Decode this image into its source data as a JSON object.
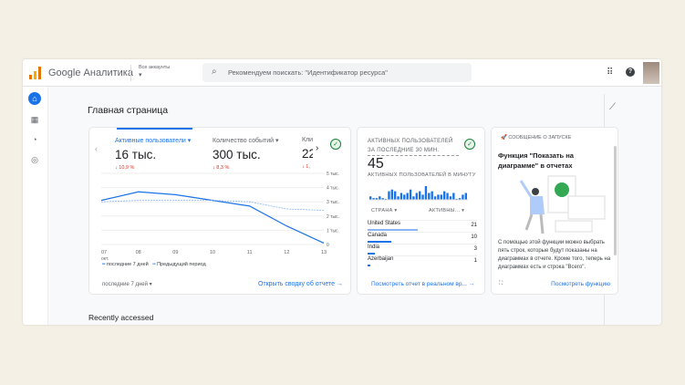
{
  "header": {
    "brand": "Google Аналитика",
    "account_label": "Все аккаунты",
    "search_placeholder": "Рекомендуем поискать: \"Идентификатор ресурса\""
  },
  "page": {
    "title": "Главная страница",
    "recent": "Recently accessed"
  },
  "sidebar": {
    "items": [
      {
        "icon": "home-icon"
      },
      {
        "icon": "reports-icon"
      },
      {
        "icon": "explore-icon"
      },
      {
        "icon": "advertising-icon"
      }
    ]
  },
  "overview": {
    "metrics": [
      {
        "label": "Активные пользователи",
        "value": "16 тыс.",
        "delta": "10,9 %"
      },
      {
        "label": "Количество событий",
        "value": "300 тыс.",
        "delta": "8,3 %"
      },
      {
        "label": "Кли",
        "value": "22",
        "delta": "1,"
      }
    ],
    "legend_current": "последние 7 дней",
    "legend_previous": "Предыдущий период",
    "range": "последние 7 дней",
    "link": "Открыть сводку об отчете"
  },
  "chart_data": {
    "type": "line",
    "x": [
      "07",
      "08",
      "09",
      "10",
      "11",
      "12",
      "13"
    ],
    "x_sublabel": "окт.",
    "ytick_labels": [
      "0",
      "1 тыс.",
      "2 тыс.",
      "3 тыс.",
      "4 тыс.",
      "5 тыс."
    ],
    "ylim": [
      0,
      5000
    ],
    "series": [
      {
        "name": "последние 7 дней",
        "values": [
          3100,
          3700,
          3500,
          3100,
          2700,
          1300,
          100
        ]
      },
      {
        "name": "Предыдущий период",
        "values": [
          3000,
          3100,
          3100,
          3100,
          3000,
          2500,
          2400
        ]
      }
    ],
    "colors": [
      "#1a73e8",
      "#8ab4f8"
    ]
  },
  "realtime": {
    "title": "АКТИВНЫХ ПОЛЬЗОВАТЕЛЕЙ ЗА ПОСЛЕДНИЕ 30 МИН.",
    "value": "45",
    "per_minute": "АКТИВНЫХ ПОЛЬЗОВАТЕЛЕЙ В МИНУТУ",
    "bars": [
      2,
      1,
      1,
      2,
      1,
      0,
      5,
      6,
      5,
      2,
      4,
      3,
      4,
      6,
      2,
      4,
      5,
      3,
      8,
      4,
      5,
      2,
      3,
      3,
      5,
      4,
      2,
      4,
      0,
      1,
      3,
      4
    ],
    "col_country": "СТРАНА",
    "col_active": "АКТИВНЫ...",
    "rows": [
      {
        "country": "United States",
        "count": "21"
      },
      {
        "country": "Canada",
        "count": "10"
      },
      {
        "country": "India",
        "count": "3"
      },
      {
        "country": "Azerbaijan",
        "count": "1"
      }
    ],
    "link": "Посмотреть отчет в реальном вр..."
  },
  "launch": {
    "tag": "СООБЩЕНИЕ О ЗАПУСКЕ",
    "title": "Функция \"Показать на диаграмме\" в отчетах",
    "desc": "С помощью этой функции можно выбрать пять строк, которые будут показаны на диаграммах в отчете. Кроме того, теперь на диаграммах есть и строка \"Всего\".",
    "link": "Посмотреть функцию"
  }
}
